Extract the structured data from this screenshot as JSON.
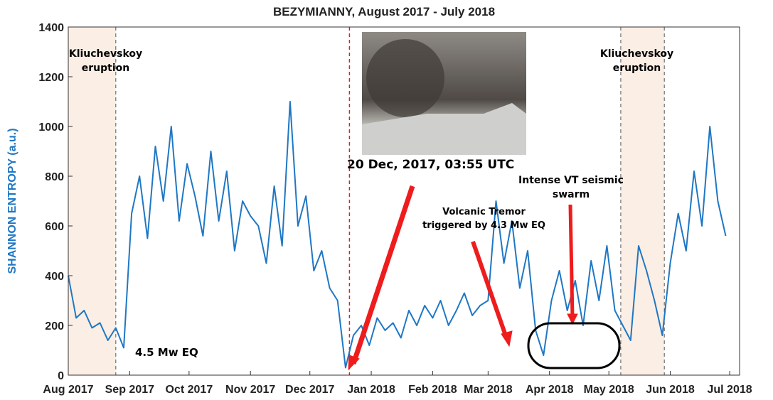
{
  "chart_data": {
    "type": "line",
    "title": "BEZYMIANNY, August 2017 - July 2018",
    "y_label": "SHANNON ENTROPY (a.u.)",
    "color": "#1f77c4",
    "x": [
      0,
      4,
      8,
      12,
      16,
      20,
      24,
      28,
      32,
      36,
      40,
      44,
      48,
      52,
      56,
      60,
      64,
      68,
      72,
      76,
      80,
      84,
      88,
      92,
      96,
      100,
      104,
      108,
      112,
      116,
      120,
      124,
      128,
      132,
      136,
      140,
      144,
      148,
      152,
      156,
      160,
      164,
      168,
      172,
      176,
      180,
      184,
      188,
      192,
      196,
      200,
      204,
      208,
      212,
      216,
      220,
      224,
      228,
      232,
      236,
      240,
      244,
      248,
      252,
      256,
      260,
      264,
      268,
      272,
      276,
      280,
      284,
      288,
      292,
      296,
      300,
      304,
      308,
      312,
      316,
      320,
      324,
      328,
      332
    ],
    "values": [
      400,
      230,
      260,
      190,
      210,
      140,
      190,
      110,
      650,
      800,
      550,
      920,
      700,
      1000,
      620,
      850,
      720,
      560,
      900,
      620,
      820,
      500,
      700,
      640,
      600,
      450,
      760,
      520,
      1100,
      600,
      720,
      420,
      500,
      350,
      300,
      30,
      160,
      200,
      120,
      230,
      180,
      210,
      150,
      260,
      200,
      280,
      230,
      300,
      200,
      260,
      330,
      240,
      280,
      300,
      700,
      450,
      620,
      350,
      500,
      180,
      80,
      300,
      420,
      260,
      380,
      200,
      460,
      300,
      520,
      260,
      200,
      140,
      520,
      420,
      300,
      160,
      450,
      650,
      500,
      820,
      600,
      1000,
      700,
      560
    ],
    "xlim": [
      0,
      339
    ],
    "ylim": [
      0,
      1400
    ],
    "yticks": [
      0,
      200,
      400,
      600,
      800,
      1000,
      1200,
      1400
    ],
    "xticks": [
      {
        "value": 0,
        "label": "Aug 2017"
      },
      {
        "value": 31,
        "label": "Sep 2017"
      },
      {
        "value": 61,
        "label": "Oct 2017"
      },
      {
        "value": 92,
        "label": "Nov 2017"
      },
      {
        "value": 122,
        "label": "Dec 2017"
      },
      {
        "value": 153,
        "label": "Jan 2018"
      },
      {
        "value": 184,
        "label": "Feb 2018"
      },
      {
        "value": 212,
        "label": "Mar 2018"
      },
      {
        "value": 243,
        "label": "Apr 2018"
      },
      {
        "value": 273,
        "label": "May 2018"
      },
      {
        "value": 304,
        "label": "Jun 2018"
      },
      {
        "value": 334,
        "label": "Jul 2018"
      }
    ],
    "shaded_spans": [
      [
        0,
        24
      ],
      [
        279,
        301
      ]
    ],
    "event_line": 142,
    "annotations": [
      "Kliuchevskoy eruption",
      "Kliuchevskoy eruption",
      "4.5 Mw EQ",
      "20 Dec, 2017, 03:55 UTC",
      "Volcanic Tremor triggered by 4.3 Mw EQ",
      "Intense VT seismic swarm"
    ]
  }
}
